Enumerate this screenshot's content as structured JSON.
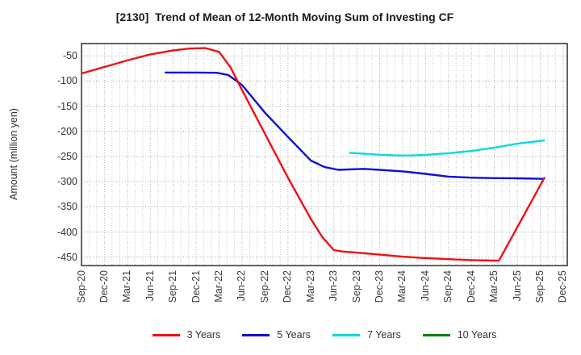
{
  "window": {
    "title": "[2130]  Trend of Mean of 12-Month Moving Sum of Investing CF"
  },
  "chart_data": {
    "type": "line",
    "title": "[2130]  Trend of Mean of 12-Month Moving Sum of Investing CF",
    "xlabel": "",
    "ylabel": "Amount (million yen)",
    "categories": [
      "Sep-20",
      "Dec-20",
      "Mar-21",
      "Jun-21",
      "Sep-21",
      "Dec-21",
      "Mar-22",
      "Jun-22",
      "Sep-22",
      "Dec-22",
      "Mar-23",
      "Jun-23",
      "Sep-23",
      "Dec-23",
      "Mar-24",
      "Jun-24",
      "Sep-24",
      "Dec-24",
      "Mar-25",
      "Jun-25",
      "Sep-25",
      "Dec-25"
    ],
    "y_ticks": [
      -50,
      -100,
      -150,
      -200,
      -250,
      -300,
      -350,
      -400,
      -450
    ],
    "ylim": [
      -467,
      -25.5
    ],
    "xlim_quarters": [
      0,
      21.18
    ],
    "x_unit": "quarter index from Sep-20 (1 unit = 3 months)",
    "grid": "dotted; vertical line every month, horizontal line every 50",
    "legend_position": "bottom-center",
    "frame_color": "#3c3c3c",
    "grid_color_minor": "#c9c9c9",
    "grid_color_major": "#b0b0b0",
    "grid_color_horizontal": "#9c9c9c",
    "series": [
      {
        "name": "10 Years",
        "color": "#008000",
        "points": []
      },
      {
        "name": "7 Years",
        "color": "#0cd8e0",
        "points": [
          [
            11.67,
            -243
          ],
          [
            12,
            -243.5
          ],
          [
            13,
            -246.5
          ],
          [
            13.7,
            -247.8
          ],
          [
            14.3,
            -248
          ],
          [
            15,
            -246.8
          ],
          [
            16,
            -243.5
          ],
          [
            17,
            -239
          ],
          [
            18,
            -232.5
          ],
          [
            19,
            -224.5
          ],
          [
            20.2,
            -218
          ]
        ]
      },
      {
        "name": "5 Years",
        "color": "#0f0fd6",
        "points": [
          [
            3.63,
            -83
          ],
          [
            4,
            -83
          ],
          [
            5,
            -83
          ],
          [
            5.9,
            -83.5
          ],
          [
            6.4,
            -88
          ],
          [
            7,
            -108
          ],
          [
            8,
            -163
          ],
          [
            9,
            -211
          ],
          [
            10,
            -258
          ],
          [
            10.6,
            -271
          ],
          [
            11.2,
            -276.5
          ],
          [
            12.3,
            -274.5
          ],
          [
            13,
            -276.5
          ],
          [
            14,
            -279.5
          ],
          [
            15,
            -284.5
          ],
          [
            16,
            -290
          ],
          [
            17,
            -292
          ],
          [
            18,
            -293
          ],
          [
            19,
            -293.3
          ],
          [
            20.2,
            -294.5
          ]
        ]
      },
      {
        "name": "3 Years",
        "color": "#ee1111",
        "points": [
          [
            0,
            -85
          ],
          [
            1,
            -72
          ],
          [
            2,
            -59
          ],
          [
            3,
            -47
          ],
          [
            4,
            -39
          ],
          [
            4.7,
            -35.5
          ],
          [
            5.4,
            -34.5
          ],
          [
            6,
            -42
          ],
          [
            6.5,
            -73
          ],
          [
            7,
            -118
          ],
          [
            8,
            -205
          ],
          [
            9,
            -292
          ],
          [
            10,
            -374
          ],
          [
            10.5,
            -410
          ],
          [
            11,
            -436
          ],
          [
            11.4,
            -439
          ],
          [
            12,
            -441
          ],
          [
            13,
            -445
          ],
          [
            14,
            -449
          ],
          [
            15,
            -452
          ],
          [
            16,
            -454
          ],
          [
            17,
            -456
          ],
          [
            18.2,
            -457
          ],
          [
            20.2,
            -291
          ]
        ]
      }
    ],
    "legend_order": [
      "3 Years",
      "5 Years",
      "7 Years",
      "10 Years"
    ]
  }
}
